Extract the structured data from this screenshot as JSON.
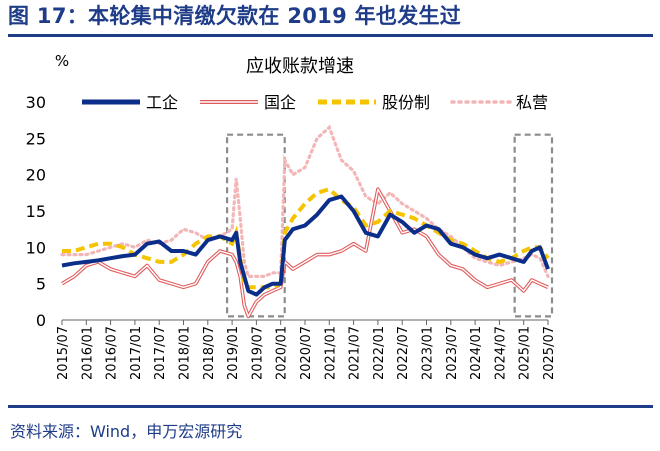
{
  "figure": {
    "title": "图 17：本轮集中清缴欠款在 2019 年也发生过",
    "source": "资料来源：Wind，申万宏源研究"
  },
  "colors": {
    "frame_blue": "#1f3c88",
    "highlight_box": "#8c8c8c"
  },
  "chart_data": {
    "type": "line",
    "title": "应收账款增速",
    "ylabel": "%",
    "xlabel": "",
    "ylim": [
      0,
      30
    ],
    "yticks": [
      0,
      5,
      10,
      15,
      20,
      25,
      30
    ],
    "x_start": "2015/07",
    "x_end": "2025/07",
    "x_ticks": [
      "2015/07",
      "2016/01",
      "2016/07",
      "2017/01",
      "2017/07",
      "2018/01",
      "2018/07",
      "2019/01",
      "2019/07",
      "2020/01",
      "2020/07",
      "2021/01",
      "2021/07",
      "2022/01",
      "2022/07",
      "2023/01",
      "2023/07",
      "2024/01",
      "2024/07",
      "2025/01",
      "2025/07"
    ],
    "grid": false,
    "legend_position": "top",
    "highlight_ranges": [
      {
        "from": "2019/01",
        "to": "2020/01"
      },
      {
        "from": "2024/12",
        "to": "2025/07"
      }
    ],
    "series": [
      {
        "name": "工企",
        "color": "#0b2e8a",
        "style": "solid-thick",
        "points": [
          [
            "2015/07",
            7.5
          ],
          [
            "2015/10",
            7.8
          ],
          [
            "2016/01",
            8.0
          ],
          [
            "2016/04",
            8.2
          ],
          [
            "2016/07",
            8.5
          ],
          [
            "2016/10",
            8.8
          ],
          [
            "2017/01",
            9.0
          ],
          [
            "2017/04",
            10.5
          ],
          [
            "2017/07",
            10.8
          ],
          [
            "2017/10",
            9.5
          ],
          [
            "2018/01",
            9.5
          ],
          [
            "2018/04",
            9.0
          ],
          [
            "2018/07",
            11.0
          ],
          [
            "2018/10",
            11.5
          ],
          [
            "2019/01",
            11.0
          ],
          [
            "2019/02",
            12.0
          ],
          [
            "2019/03",
            8.0
          ],
          [
            "2019/04",
            6.0
          ],
          [
            "2019/05",
            4.0
          ],
          [
            "2019/07",
            3.5
          ],
          [
            "2019/09",
            4.5
          ],
          [
            "2019/11",
            5.0
          ],
          [
            "2020/01",
            5.0
          ],
          [
            "2020/02",
            11.0
          ],
          [
            "2020/04",
            12.5
          ],
          [
            "2020/07",
            13.0
          ],
          [
            "2020/10",
            14.5
          ],
          [
            "2021/01",
            16.5
          ],
          [
            "2021/04",
            17.0
          ],
          [
            "2021/07",
            15.0
          ],
          [
            "2021/10",
            12.0
          ],
          [
            "2022/01",
            11.5
          ],
          [
            "2022/04",
            14.5
          ],
          [
            "2022/07",
            13.5
          ],
          [
            "2022/10",
            12.0
          ],
          [
            "2023/01",
            13.0
          ],
          [
            "2023/04",
            12.5
          ],
          [
            "2023/07",
            10.5
          ],
          [
            "2023/10",
            10.0
          ],
          [
            "2024/01",
            9.0
          ],
          [
            "2024/04",
            8.5
          ],
          [
            "2024/07",
            9.0
          ],
          [
            "2024/10",
            8.5
          ],
          [
            "2025/01",
            8.0
          ],
          [
            "2025/03",
            9.5
          ],
          [
            "2025/05",
            10.0
          ],
          [
            "2025/07",
            7.0
          ]
        ]
      },
      {
        "name": "国企",
        "color": "#e05c5c",
        "style": "double-outline",
        "points": [
          [
            "2015/07",
            5.0
          ],
          [
            "2015/10",
            6.0
          ],
          [
            "2016/01",
            7.5
          ],
          [
            "2016/04",
            8.0
          ],
          [
            "2016/07",
            7.0
          ],
          [
            "2016/10",
            6.5
          ],
          [
            "2017/01",
            6.0
          ],
          [
            "2017/04",
            7.5
          ],
          [
            "2017/07",
            5.5
          ],
          [
            "2017/10",
            5.0
          ],
          [
            "2018/01",
            4.5
          ],
          [
            "2018/04",
            5.0
          ],
          [
            "2018/07",
            8.0
          ],
          [
            "2018/10",
            9.5
          ],
          [
            "2019/01",
            9.0
          ],
          [
            "2019/02",
            8.0
          ],
          [
            "2019/03",
            6.0
          ],
          [
            "2019/04",
            2.0
          ],
          [
            "2019/05",
            0.5
          ],
          [
            "2019/07",
            2.5
          ],
          [
            "2019/09",
            3.5
          ],
          [
            "2019/11",
            4.0
          ],
          [
            "2020/01",
            4.5
          ],
          [
            "2020/02",
            8.0
          ],
          [
            "2020/04",
            7.0
          ],
          [
            "2020/07",
            8.0
          ],
          [
            "2020/10",
            9.0
          ],
          [
            "2021/01",
            9.0
          ],
          [
            "2021/04",
            9.5
          ],
          [
            "2021/07",
            10.5
          ],
          [
            "2021/10",
            9.5
          ],
          [
            "2022/01",
            18.0
          ],
          [
            "2022/04",
            15.0
          ],
          [
            "2022/07",
            12.0
          ],
          [
            "2022/10",
            12.5
          ],
          [
            "2023/01",
            11.5
          ],
          [
            "2023/04",
            9.0
          ],
          [
            "2023/07",
            7.5
          ],
          [
            "2023/10",
            7.0
          ],
          [
            "2024/01",
            5.5
          ],
          [
            "2024/04",
            4.5
          ],
          [
            "2024/07",
            5.0
          ],
          [
            "2024/10",
            5.5
          ],
          [
            "2025/01",
            4.0
          ],
          [
            "2025/03",
            5.5
          ],
          [
            "2025/05",
            5.0
          ],
          [
            "2025/07",
            4.5
          ]
        ]
      },
      {
        "name": "股份制",
        "color": "#f5c400",
        "style": "dashed",
        "points": [
          [
            "2015/07",
            9.5
          ],
          [
            "2015/10",
            9.5
          ],
          [
            "2016/01",
            10.0
          ],
          [
            "2016/04",
            10.5
          ],
          [
            "2016/07",
            10.5
          ],
          [
            "2016/10",
            10.0
          ],
          [
            "2017/01",
            9.0
          ],
          [
            "2017/04",
            8.5
          ],
          [
            "2017/07",
            8.0
          ],
          [
            "2017/10",
            8.0
          ],
          [
            "2018/01",
            9.0
          ],
          [
            "2018/04",
            10.5
          ],
          [
            "2018/07",
            11.5
          ],
          [
            "2018/10",
            11.5
          ],
          [
            "2019/01",
            10.5
          ],
          [
            "2019/02",
            12.0
          ],
          [
            "2019/03",
            8.5
          ],
          [
            "2019/04",
            5.0
          ],
          [
            "2019/05",
            4.5
          ],
          [
            "2019/07",
            4.5
          ],
          [
            "2019/09",
            4.5
          ],
          [
            "2019/11",
            4.5
          ],
          [
            "2020/01",
            5.0
          ],
          [
            "2020/02",
            12.0
          ],
          [
            "2020/04",
            14.0
          ],
          [
            "2020/07",
            16.0
          ],
          [
            "2020/10",
            17.5
          ],
          [
            "2021/01",
            18.0
          ],
          [
            "2021/04",
            16.5
          ],
          [
            "2021/07",
            15.5
          ],
          [
            "2021/10",
            13.0
          ],
          [
            "2022/01",
            13.5
          ],
          [
            "2022/04",
            15.0
          ],
          [
            "2022/07",
            14.5
          ],
          [
            "2022/10",
            14.0
          ],
          [
            "2023/01",
            13.0
          ],
          [
            "2023/04",
            12.0
          ],
          [
            "2023/07",
            11.0
          ],
          [
            "2023/10",
            10.5
          ],
          [
            "2024/01",
            9.5
          ],
          [
            "2024/04",
            8.5
          ],
          [
            "2024/07",
            8.0
          ],
          [
            "2024/10",
            8.5
          ],
          [
            "2025/01",
            9.5
          ],
          [
            "2025/03",
            10.0
          ],
          [
            "2025/05",
            10.0
          ],
          [
            "2025/07",
            8.5
          ]
        ]
      },
      {
        "name": "私营",
        "color": "#f3b6b6",
        "style": "dotted",
        "points": [
          [
            "2015/07",
            9.0
          ],
          [
            "2015/10",
            9.0
          ],
          [
            "2016/01",
            9.0
          ],
          [
            "2016/04",
            9.5
          ],
          [
            "2016/07",
            10.0
          ],
          [
            "2016/10",
            10.5
          ],
          [
            "2017/01",
            10.0
          ],
          [
            "2017/04",
            11.0
          ],
          [
            "2017/07",
            10.5
          ],
          [
            "2017/10",
            11.0
          ],
          [
            "2018/01",
            12.5
          ],
          [
            "2018/04",
            12.0
          ],
          [
            "2018/07",
            11.0
          ],
          [
            "2018/10",
            11.5
          ],
          [
            "2019/01",
            12.5
          ],
          [
            "2019/02",
            19.5
          ],
          [
            "2019/03",
            14.0
          ],
          [
            "2019/04",
            8.0
          ],
          [
            "2019/05",
            6.0
          ],
          [
            "2019/07",
            6.0
          ],
          [
            "2019/09",
            6.0
          ],
          [
            "2019/11",
            6.5
          ],
          [
            "2020/01",
            6.5
          ],
          [
            "2020/02",
            22.0
          ],
          [
            "2020/04",
            20.0
          ],
          [
            "2020/07",
            21.0
          ],
          [
            "2020/10",
            25.0
          ],
          [
            "2021/01",
            26.5
          ],
          [
            "2021/04",
            22.0
          ],
          [
            "2021/07",
            20.5
          ],
          [
            "2021/10",
            17.0
          ],
          [
            "2022/01",
            16.0
          ],
          [
            "2022/04",
            17.5
          ],
          [
            "2022/07",
            16.0
          ],
          [
            "2022/10",
            15.0
          ],
          [
            "2023/01",
            14.0
          ],
          [
            "2023/04",
            12.5
          ],
          [
            "2023/07",
            11.5
          ],
          [
            "2023/10",
            10.0
          ],
          [
            "2024/01",
            8.5
          ],
          [
            "2024/04",
            8.0
          ],
          [
            "2024/07",
            7.5
          ],
          [
            "2024/10",
            8.0
          ],
          [
            "2025/01",
            8.5
          ],
          [
            "2025/03",
            9.0
          ],
          [
            "2025/05",
            8.5
          ],
          [
            "2025/07",
            6.0
          ]
        ]
      }
    ]
  }
}
